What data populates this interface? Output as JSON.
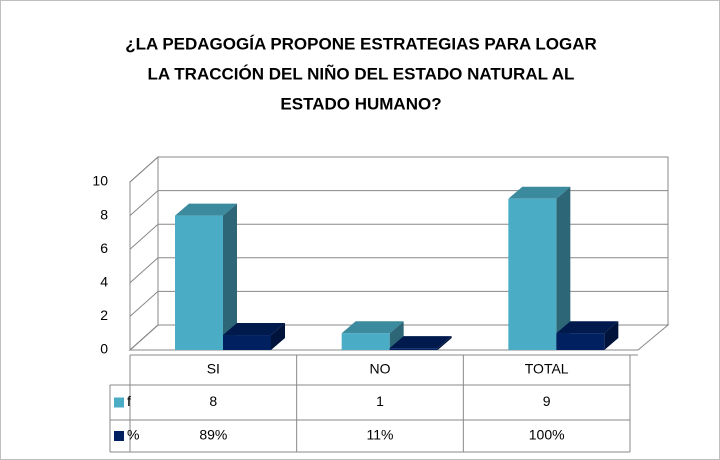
{
  "chart_data": {
    "type": "bar3d",
    "title": [
      "¿LA PEDAGOGÍA PROPONE ESTRATEGIAS PARA LOGAR",
      "LA TRACCIÓN DEL NIÑO DEL ESTADO NATURAL AL",
      "ESTADO HUMANO?"
    ],
    "categories": [
      "SI",
      "NO",
      "TOTAL"
    ],
    "series": [
      {
        "name": "f",
        "color": "#4bacc6",
        "values": [
          8,
          1,
          9
        ]
      },
      {
        "name": "%",
        "color": "#002060",
        "values": [
          0.89,
          0.11,
          1
        ],
        "value_labels": [
          "89%",
          "11%",
          "100%"
        ]
      }
    ],
    "ylim": [
      0,
      10
    ],
    "yticks": [
      0,
      2,
      4,
      6,
      8,
      10
    ],
    "grid": true
  }
}
